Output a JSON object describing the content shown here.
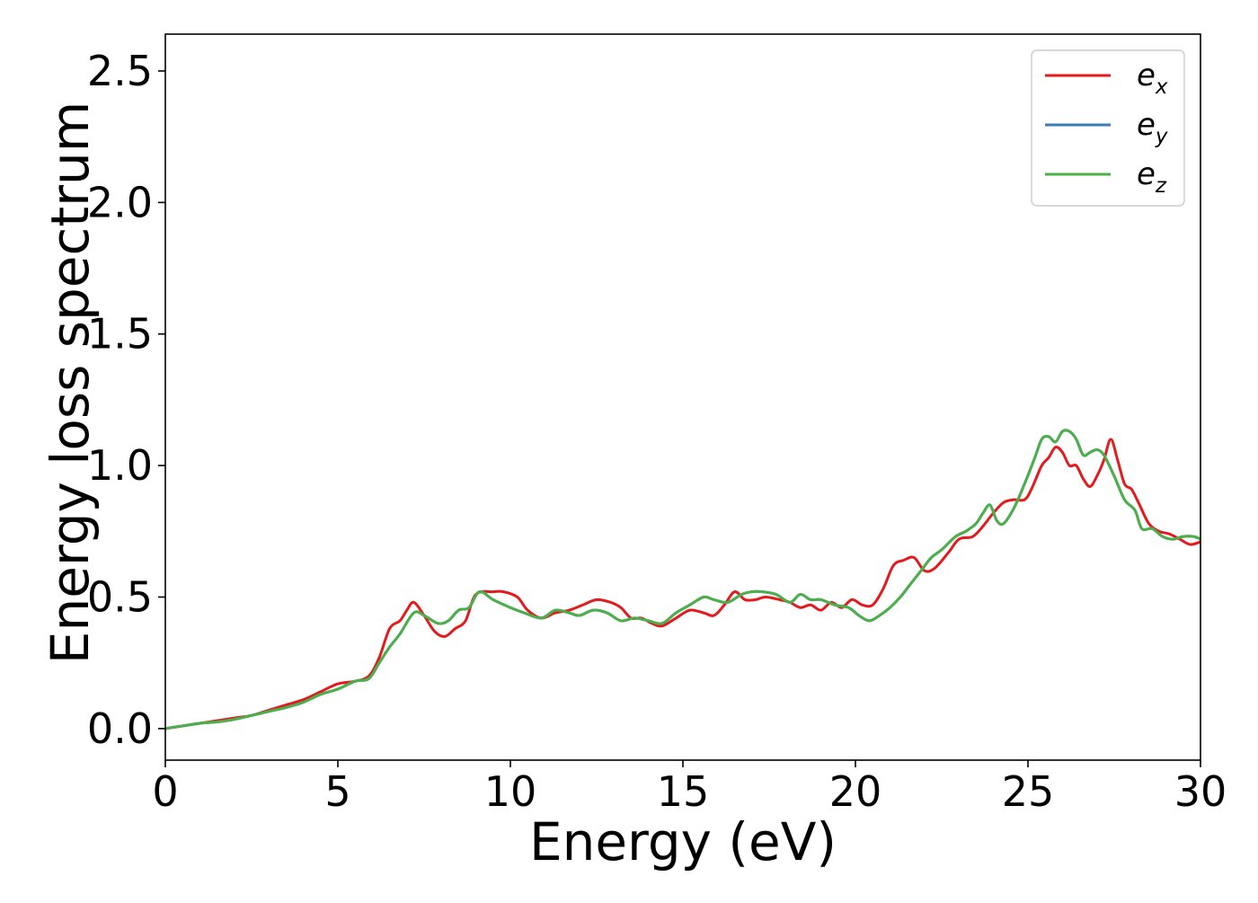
{
  "chart_data": {
    "type": "line",
    "title": "",
    "xlabel": "Energy (eV)",
    "ylabel": "Energy loss spectrum",
    "xlim": [
      0,
      30
    ],
    "ylim": [
      -0.12,
      2.64
    ],
    "xticks": [
      0,
      5,
      10,
      15,
      20,
      25,
      30
    ],
    "xtick_labels": [
      "0",
      "5",
      "10",
      "15",
      "20",
      "25",
      "30"
    ],
    "yticks": [
      0.0,
      0.5,
      1.0,
      1.5,
      2.0,
      2.5
    ],
    "ytick_labels": [
      "0.0",
      "0.5",
      "1.0",
      "1.5",
      "2.0",
      "2.5"
    ],
    "grid": false,
    "legend_position": "top-right",
    "series": [
      {
        "name": "e_x",
        "legend_base": "e",
        "legend_sub": "x",
        "color": "#e41a1c",
        "x": [
          0,
          0.5,
          1,
          1.5,
          2,
          2.5,
          3,
          3.5,
          4,
          4.5,
          5,
          5.5,
          5.9,
          6.2,
          6.5,
          6.8,
          7.0,
          7.2,
          7.5,
          7.8,
          8.1,
          8.4,
          8.7,
          9.0,
          9.5,
          9.8,
          10.2,
          10.5,
          10.9,
          11.3,
          11.7,
          12.1,
          12.5,
          12.9,
          13.2,
          13.5,
          13.8,
          14.1,
          14.4,
          14.8,
          15.2,
          15.6,
          15.9,
          16.2,
          16.5,
          16.8,
          17.1,
          17.4,
          17.8,
          18.1,
          18.4,
          18.7,
          19.0,
          19.3,
          19.6,
          19.9,
          20.2,
          20.5,
          20.8,
          21.1,
          21.4,
          21.7,
          22.0,
          22.3,
          22.7,
          23.0,
          23.4,
          23.7,
          24.0,
          24.3,
          24.6,
          24.9,
          25.1,
          25.4,
          25.6,
          25.8,
          26.0,
          26.2,
          26.4,
          26.6,
          26.8,
          27.0,
          27.2,
          27.4,
          27.6,
          27.8,
          28.0,
          28.2,
          28.5,
          28.8,
          29.1,
          29.4,
          29.7,
          30.0
        ],
        "y": [
          0.0,
          0.01,
          0.02,
          0.03,
          0.04,
          0.05,
          0.07,
          0.09,
          0.11,
          0.14,
          0.17,
          0.18,
          0.2,
          0.27,
          0.38,
          0.41,
          0.45,
          0.48,
          0.43,
          0.37,
          0.35,
          0.38,
          0.41,
          0.51,
          0.52,
          0.52,
          0.5,
          0.45,
          0.42,
          0.44,
          0.45,
          0.47,
          0.49,
          0.48,
          0.46,
          0.42,
          0.42,
          0.4,
          0.39,
          0.42,
          0.45,
          0.44,
          0.43,
          0.47,
          0.52,
          0.49,
          0.49,
          0.5,
          0.49,
          0.48,
          0.46,
          0.47,
          0.45,
          0.48,
          0.46,
          0.49,
          0.47,
          0.47,
          0.53,
          0.62,
          0.64,
          0.65,
          0.6,
          0.61,
          0.67,
          0.72,
          0.73,
          0.77,
          0.82,
          0.86,
          0.87,
          0.87,
          0.91,
          1.0,
          1.03,
          1.07,
          1.05,
          1.0,
          1.0,
          0.95,
          0.92,
          0.96,
          1.02,
          1.1,
          1.02,
          0.93,
          0.91,
          0.86,
          0.78,
          0.75,
          0.74,
          0.72,
          0.7,
          0.71
        ]
      },
      {
        "name": "e_y",
        "legend_base": "e",
        "legend_sub": "y",
        "color": "#377eb8",
        "x": [
          0,
          0.5,
          1,
          1.5,
          2,
          2.5,
          3,
          3.5,
          4,
          4.5,
          5,
          5.5,
          5.9,
          6.2,
          6.5,
          6.8,
          7.2,
          7.5,
          7.9,
          8.2,
          8.5,
          8.8,
          9.1,
          9.5,
          10.0,
          10.4,
          10.9,
          11.3,
          11.7,
          12.0,
          12.4,
          12.8,
          13.2,
          13.6,
          14.0,
          14.4,
          14.8,
          15.2,
          15.6,
          15.9,
          16.3,
          16.7,
          17.0,
          17.3,
          17.7,
          18.1,
          18.4,
          18.7,
          19.0,
          19.4,
          19.8,
          20.1,
          20.4,
          20.7,
          21.0,
          21.3,
          21.6,
          21.9,
          22.2,
          22.5,
          22.9,
          23.2,
          23.5,
          23.7,
          23.9,
          24.1,
          24.3,
          24.6,
          24.9,
          25.2,
          25.4,
          25.6,
          25.8,
          26.0,
          26.2,
          26.4,
          26.6,
          26.8,
          27.0,
          27.2,
          27.5,
          27.8,
          28.1,
          28.3,
          28.6,
          28.9,
          29.2,
          29.5,
          29.8,
          30.0
        ],
        "y": [
          0.0,
          0.01,
          0.02,
          0.025,
          0.035,
          0.05,
          0.065,
          0.08,
          0.1,
          0.13,
          0.15,
          0.18,
          0.19,
          0.25,
          0.31,
          0.36,
          0.44,
          0.43,
          0.4,
          0.41,
          0.45,
          0.46,
          0.52,
          0.49,
          0.46,
          0.44,
          0.42,
          0.45,
          0.44,
          0.43,
          0.45,
          0.44,
          0.41,
          0.42,
          0.41,
          0.4,
          0.44,
          0.47,
          0.5,
          0.49,
          0.48,
          0.51,
          0.52,
          0.52,
          0.51,
          0.48,
          0.51,
          0.49,
          0.49,
          0.47,
          0.46,
          0.43,
          0.41,
          0.43,
          0.46,
          0.5,
          0.55,
          0.6,
          0.65,
          0.68,
          0.73,
          0.75,
          0.78,
          0.82,
          0.85,
          0.79,
          0.78,
          0.84,
          0.93,
          1.03,
          1.1,
          1.11,
          1.09,
          1.13,
          1.13,
          1.1,
          1.04,
          1.05,
          1.06,
          1.04,
          0.96,
          0.87,
          0.83,
          0.76,
          0.76,
          0.73,
          0.72,
          0.73,
          0.73,
          0.72
        ]
      },
      {
        "name": "e_z",
        "legend_base": "e",
        "legend_sub": "z",
        "color": "#4daf4a",
        "x": [
          0,
          0.5,
          1,
          1.5,
          2,
          2.5,
          3,
          3.5,
          4,
          4.5,
          5,
          5.5,
          5.9,
          6.2,
          6.5,
          6.8,
          7.2,
          7.5,
          7.9,
          8.2,
          8.5,
          8.8,
          9.1,
          9.5,
          10.0,
          10.4,
          10.9,
          11.3,
          11.7,
          12.0,
          12.4,
          12.8,
          13.2,
          13.6,
          14.0,
          14.4,
          14.8,
          15.2,
          15.6,
          15.9,
          16.3,
          16.7,
          17.0,
          17.3,
          17.7,
          18.1,
          18.4,
          18.7,
          19.0,
          19.4,
          19.8,
          20.1,
          20.4,
          20.7,
          21.0,
          21.3,
          21.6,
          21.9,
          22.2,
          22.5,
          22.9,
          23.2,
          23.5,
          23.7,
          23.9,
          24.1,
          24.3,
          24.6,
          24.9,
          25.2,
          25.4,
          25.6,
          25.8,
          26.0,
          26.2,
          26.4,
          26.6,
          26.8,
          27.0,
          27.2,
          27.5,
          27.8,
          28.1,
          28.3,
          28.6,
          28.9,
          29.2,
          29.5,
          29.8,
          30.0
        ],
        "y": [
          0.0,
          0.01,
          0.02,
          0.025,
          0.035,
          0.05,
          0.065,
          0.08,
          0.1,
          0.13,
          0.15,
          0.18,
          0.19,
          0.25,
          0.31,
          0.36,
          0.44,
          0.43,
          0.4,
          0.41,
          0.45,
          0.46,
          0.52,
          0.49,
          0.46,
          0.44,
          0.42,
          0.45,
          0.44,
          0.43,
          0.45,
          0.44,
          0.41,
          0.42,
          0.41,
          0.4,
          0.44,
          0.47,
          0.5,
          0.49,
          0.48,
          0.51,
          0.52,
          0.52,
          0.51,
          0.48,
          0.51,
          0.49,
          0.49,
          0.47,
          0.46,
          0.43,
          0.41,
          0.43,
          0.46,
          0.5,
          0.55,
          0.6,
          0.65,
          0.68,
          0.73,
          0.75,
          0.78,
          0.82,
          0.85,
          0.79,
          0.78,
          0.84,
          0.93,
          1.03,
          1.1,
          1.11,
          1.09,
          1.13,
          1.13,
          1.1,
          1.04,
          1.05,
          1.06,
          1.04,
          0.96,
          0.87,
          0.83,
          0.76,
          0.76,
          0.73,
          0.72,
          0.73,
          0.73,
          0.72
        ]
      }
    ]
  }
}
